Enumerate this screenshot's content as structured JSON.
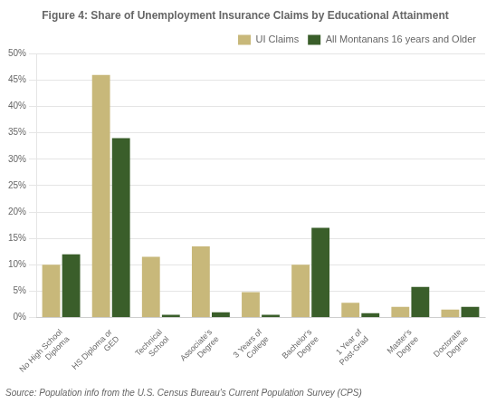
{
  "chart_data": {
    "type": "bar",
    "title": "Figure 4: Share of Unemployment Insurance Claims by Educational Attainment",
    "annotations": [
      "Source: Population info from the U.S. Census Bureau's Current Population Survey (CPS)"
    ],
    "categories": [
      "No High School\nDiploma",
      "HS Diploma or\nGED",
      "Technical\nSchool",
      "Associate's\nDegree",
      "3 Years of\nCollege",
      "Bachelor's\nDegree",
      "1 Year of\nPost-Grad",
      "Master's\nDegree",
      "Doctorate\nDegree"
    ],
    "series": [
      {
        "name": "UI Claims",
        "color": "#c8b87a",
        "values": [
          10,
          46,
          11.5,
          13.5,
          4.8,
          10,
          2.8,
          2.0,
          1.5
        ]
      },
      {
        "name": "All Montanans 16 years and Older",
        "color": "#3a5e2a",
        "values": [
          12,
          34,
          0.5,
          1.0,
          0.5,
          17,
          0.8,
          5.8,
          2.0
        ]
      }
    ],
    "ylim": [
      0,
      50
    ],
    "yticks": [
      {
        "value": 0,
        "label": "0%"
      },
      {
        "value": 5,
        "label": "5%"
      },
      {
        "value": 10,
        "label": "10%"
      },
      {
        "value": 15,
        "label": "15%"
      },
      {
        "value": 20,
        "label": "20%"
      },
      {
        "value": 25,
        "label": "25%"
      },
      {
        "value": 30,
        "label": "30%"
      },
      {
        "value": 35,
        "label": "35%"
      },
      {
        "value": 40,
        "label": "40%"
      },
      {
        "value": 45,
        "label": "45%"
      },
      {
        "value": 50,
        "label": "50%"
      }
    ],
    "grid": true,
    "legend": "upper right"
  }
}
